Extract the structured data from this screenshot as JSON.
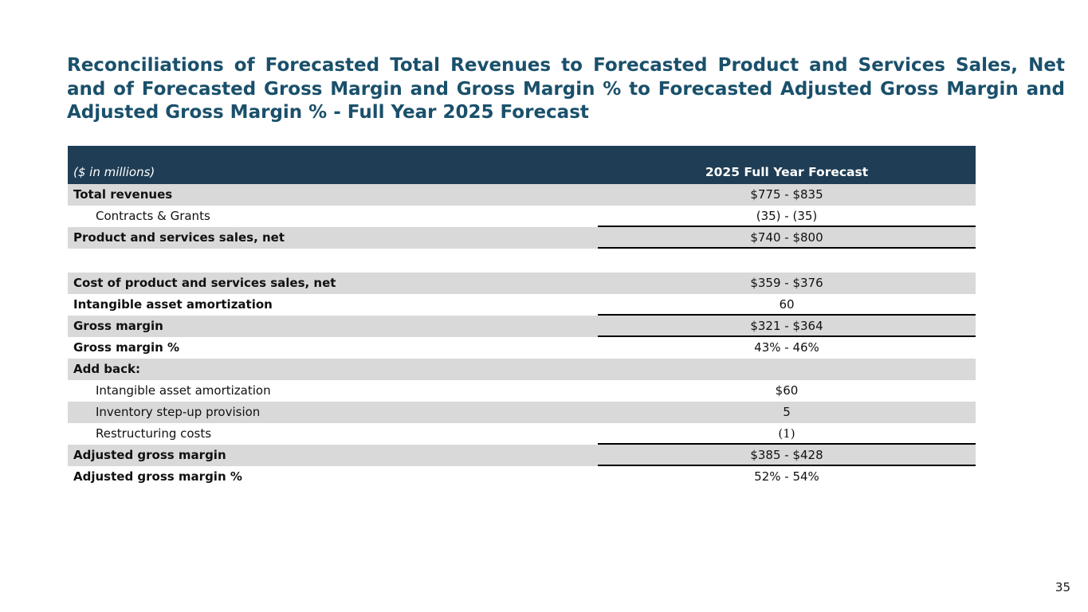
{
  "page": {
    "title": "Reconciliations of Forecasted Total Revenues to Forecasted Product and Services Sales, Net and of Forecasted Gross Margin and Gross Margin % to Forecasted Adjusted Gross Margin and Adjusted Gross Margin % - Full Year 2025 Forecast",
    "page_number": "35"
  },
  "table": {
    "header": {
      "label": "($ in millions)",
      "value": "2025 Full Year Forecast"
    },
    "rows": [
      {
        "label": "Total revenues",
        "value": "$775 - $835"
      },
      {
        "label": "Contracts & Grants",
        "value": "(35) - (35)"
      },
      {
        "label": "Product and services sales, net",
        "value": "$740 - $800"
      },
      {
        "label": "",
        "value": ""
      },
      {
        "label": "Cost of product and services sales, net",
        "value": "$359 - $376"
      },
      {
        "label": "Intangible asset amortization",
        "value": "60"
      },
      {
        "label": "Gross margin",
        "value": "$321 - $364"
      },
      {
        "label": "Gross margin %",
        "value": "43% - 46%"
      },
      {
        "label": "Add back:",
        "value": ""
      },
      {
        "label": "Intangible asset amortization",
        "value": "$60"
      },
      {
        "label": "Inventory step-up provision",
        "value": "5"
      },
      {
        "label": "Restructuring costs",
        "value": "(1)"
      },
      {
        "label": "Adjusted gross margin",
        "value": "$385 - $428"
      },
      {
        "label": "Adjusted gross margin %",
        "value": "52% - 54%"
      }
    ]
  },
  "colors": {
    "title_text": "#1a506b",
    "header_background": "#1f3d54",
    "shaded_row": "#d9d9d9"
  }
}
